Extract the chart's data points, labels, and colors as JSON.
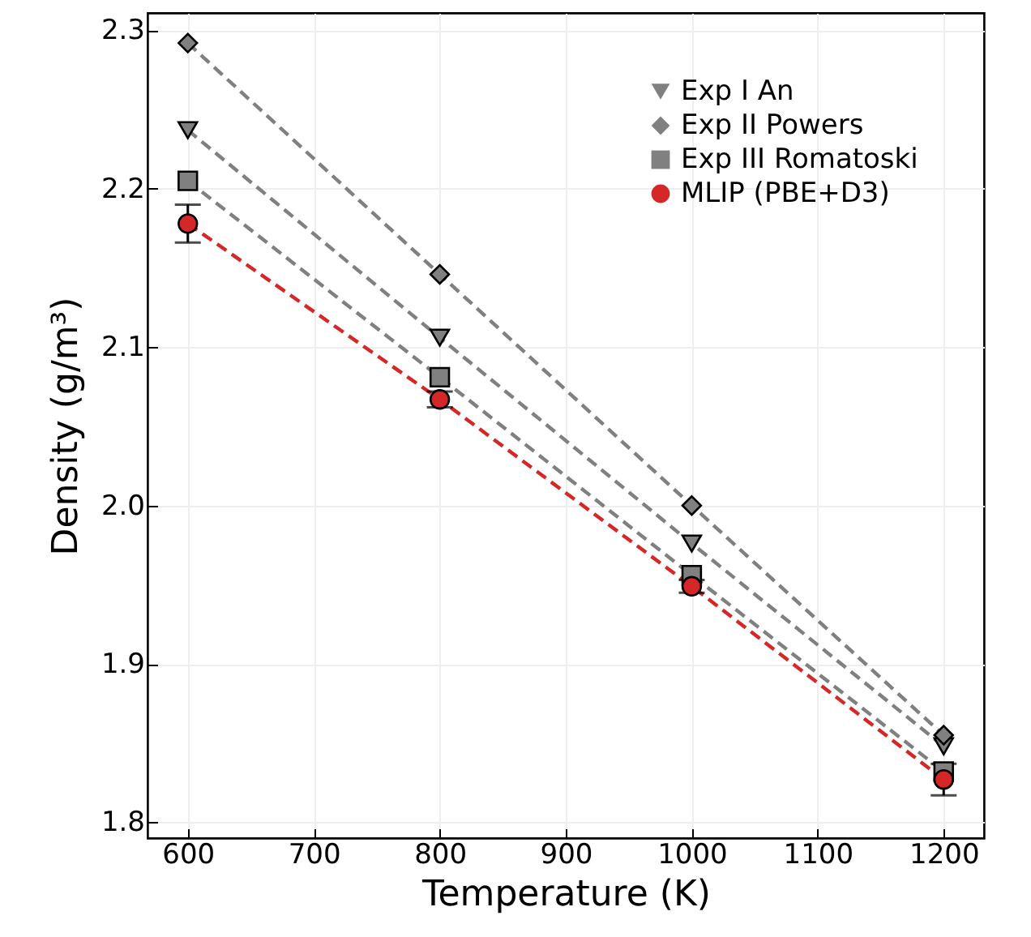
{
  "chart_data": {
    "type": "line",
    "xlabel": "Temperature (K)",
    "ylabel": "Density (g/m³)",
    "x": [
      600,
      800,
      1000,
      1200
    ],
    "series": [
      {
        "name": "Exp I An",
        "color": "#808080",
        "marker": "triangle",
        "line_style": "dashed",
        "values": [
          2.237,
          2.106,
          1.976,
          1.848
        ]
      },
      {
        "name": "Exp II Powers",
        "color": "#808080",
        "marker": "diamond",
        "line_style": "dashed",
        "values": [
          2.292,
          2.146,
          2.0,
          1.855
        ]
      },
      {
        "name": "Exp III Romatoski",
        "color": "#808080",
        "marker": "square",
        "line_style": "dashed",
        "values": [
          2.205,
          2.081,
          1.956,
          1.832
        ]
      },
      {
        "name": "MLIP (PBE+D3)",
        "color": "#d62728",
        "marker": "circle",
        "line_style": "dashed",
        "values": [
          2.178,
          2.067,
          1.949,
          1.827
        ],
        "errors": [
          0.012,
          0.005,
          0.004,
          0.01
        ]
      }
    ],
    "xlim": [
      568,
      1232
    ],
    "ylim": [
      1.79,
      2.311
    ],
    "xticks": [
      600,
      700,
      800,
      900,
      1000,
      1100,
      1200
    ],
    "yticks": [
      1.8,
      1.9,
      {
        "value": 2,
        "label": "2.0"
      },
      2.1,
      2.2,
      2.3
    ],
    "grid": true,
    "legend": "top right"
  }
}
